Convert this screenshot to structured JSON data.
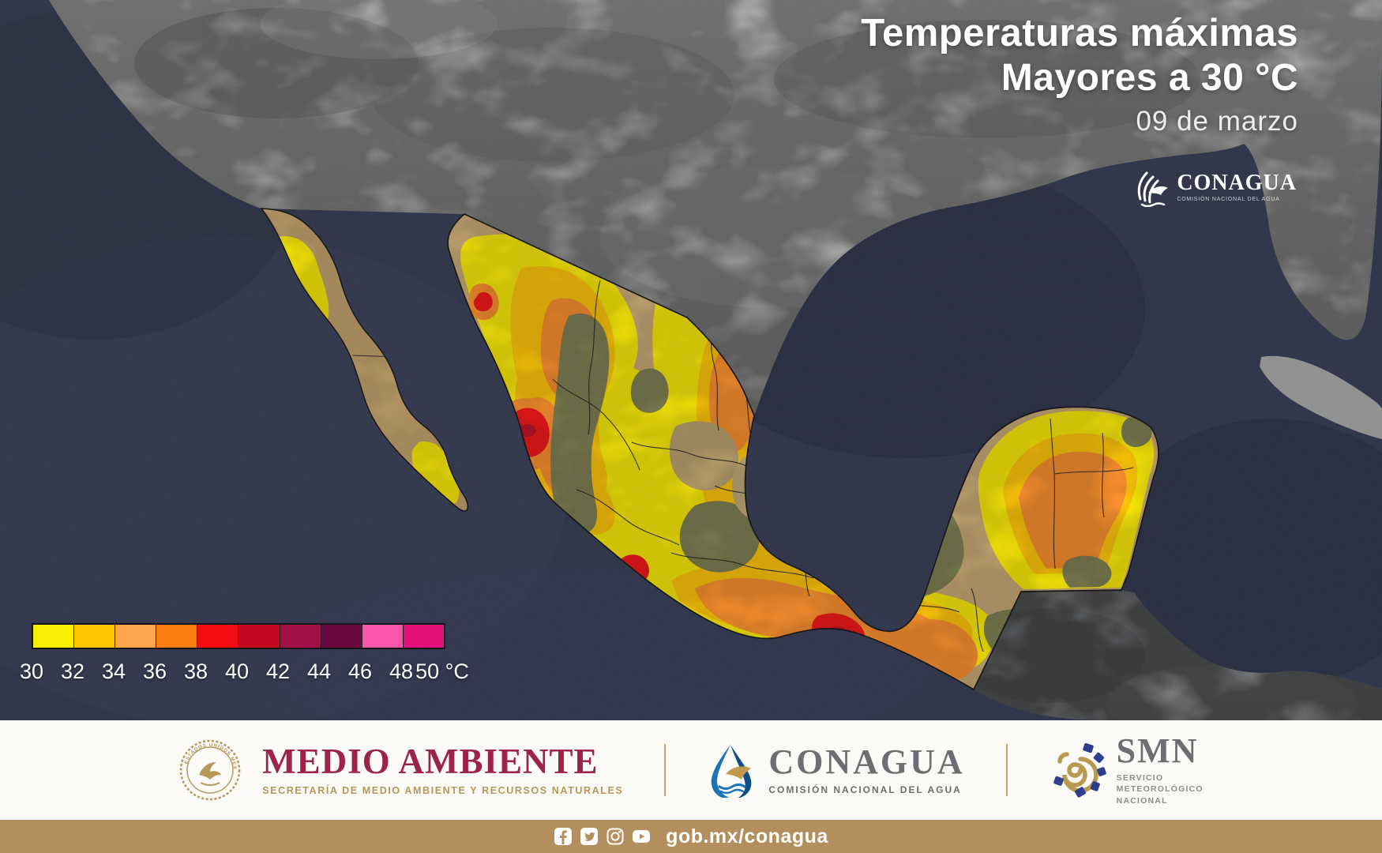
{
  "map": {
    "title_line1": "Temperaturas máximas",
    "title_line2": "Mayores a 30 °C",
    "date": "09 de marzo"
  },
  "corner_logo": {
    "title": "CONAGUA",
    "subtitle": "COMISIÓN NACIONAL DEL AGUA"
  },
  "legend": {
    "unit": "°C",
    "ticks": [
      "30",
      "32",
      "34",
      "36",
      "38",
      "40",
      "42",
      "44",
      "46",
      "48",
      "50"
    ],
    "colors": [
      "#F9EF03",
      "#FEC400",
      "#FDA44C",
      "#FB7C0E",
      "#F30D10",
      "#C30822",
      "#A31048",
      "#6B0940",
      "#FB56AC",
      "#DF1179"
    ]
  },
  "footer": {
    "semarnat": {
      "seal_caption": "ESTADOS UNIDOS MEXICANOS",
      "title": "MEDIO AMBIENTE",
      "subtitle": "SECRETARÍA DE MEDIO AMBIENTE Y RECURSOS NATURALES"
    },
    "conagua": {
      "title": "CONAGUA",
      "subtitle": "COMISIÓN NACIONAL DEL AGUA"
    },
    "smn": {
      "title": "SMN",
      "subtitle_lines": [
        "SERVICIO",
        "METEOROLÓGICO",
        "NACIONAL"
      ]
    }
  },
  "bottom_bar": {
    "url": "gob.mx/conagua",
    "icons": [
      "facebook-icon",
      "twitter-icon",
      "instagram-icon",
      "youtube-icon"
    ]
  },
  "palette": {
    "ocean": "#2B3045",
    "usa_land": "#9E9E9E",
    "guatemala_land": "#6F7173",
    "mexico_base_tan": "#C7A671",
    "mountain_olive": "#7A7B4D",
    "maroon_brand": "#9D2348",
    "gold_brand": "#B5975A",
    "gray_logo": "#6D6E71",
    "conagua_blue": "#1B74B8",
    "bottom_bar_gold": "#B28F5C"
  }
}
